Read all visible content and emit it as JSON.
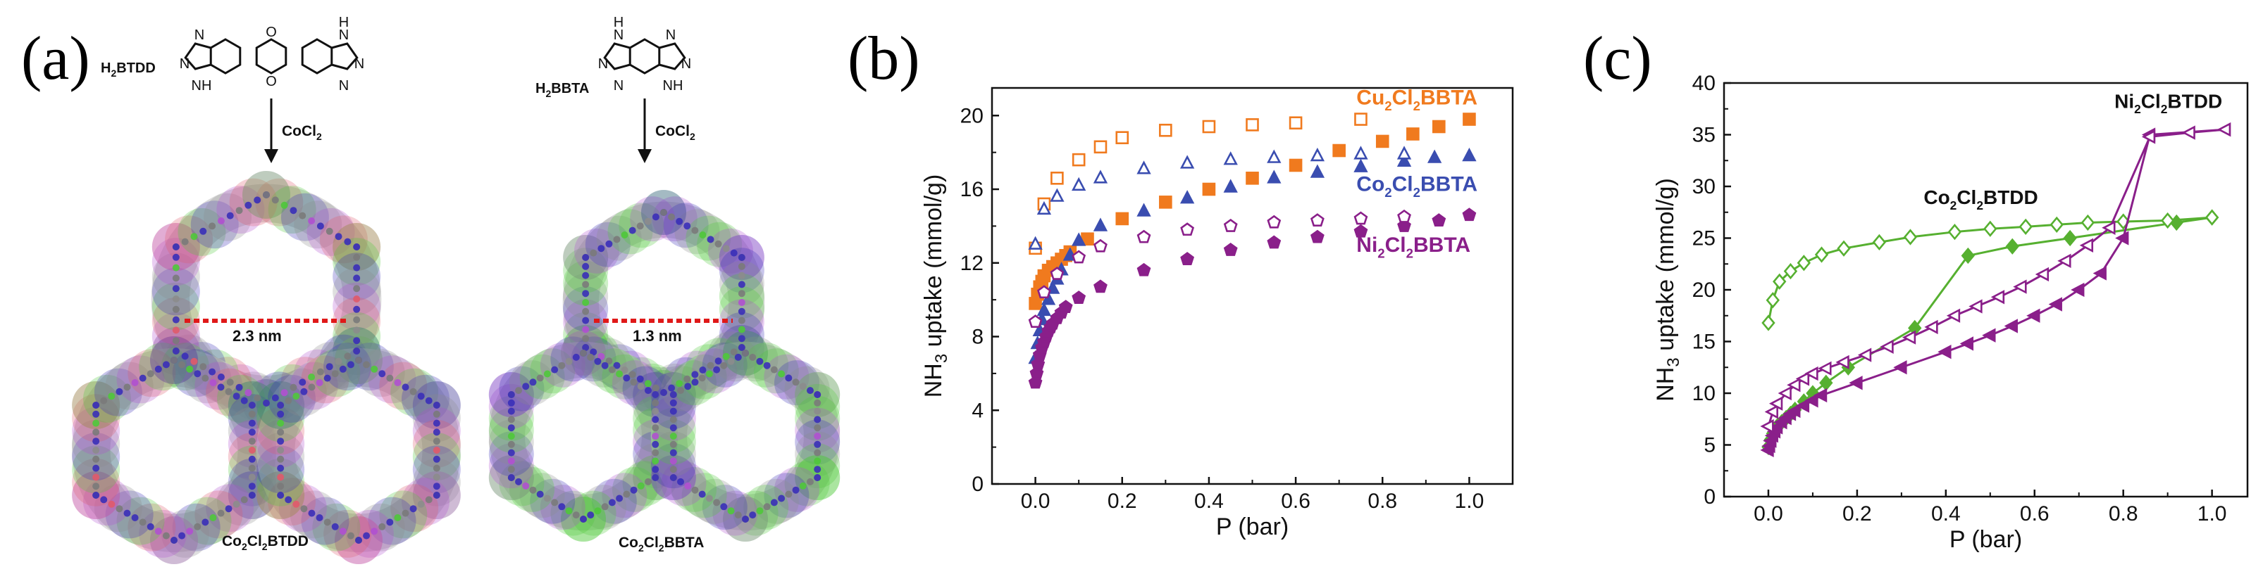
{
  "panel_letters": {
    "a": "(a)",
    "b": "(b)",
    "c": "(c)"
  },
  "panel_a": {
    "linker_left": {
      "label": "H",
      "sub": "2",
      "rest": "BTDD"
    },
    "linker_right": {
      "label": "H",
      "sub": "2",
      "rest": "BBTA"
    },
    "reagent_left": {
      "label": "CoCl",
      "sub": "2"
    },
    "reagent_right": {
      "label": "CoCl",
      "sub": "2"
    },
    "pore_left": "2.3 nm",
    "pore_right": "1.3 nm",
    "mof_left": {
      "p1": "Co",
      "s1": "2",
      "p2": "Cl",
      "s2": "2",
      "p3": "BTDD"
    },
    "mof_right": {
      "p1": "Co",
      "s1": "2",
      "p2": "Cl",
      "s2": "2",
      "p3": "BBTA"
    },
    "atom_colors": {
      "nitrogen": "#3a2fb8",
      "oxygen": "#e05a6a",
      "chlorine": "#4fc83a",
      "cobalt": "#b050d0",
      "carbon": "#8c8c8c"
    }
  },
  "chart_data": [
    {
      "id": "b",
      "type": "scatter",
      "xlabel": "P (bar)",
      "ylabel": {
        "pre": "NH",
        "sub": "3",
        "post": " uptake (mmol/g)"
      },
      "xlim": [
        -0.1,
        1.1
      ],
      "ylim": [
        0,
        21.5
      ],
      "xticks": [
        "0.0",
        "0.2",
        "0.4",
        "0.6",
        "0.8",
        "1.0"
      ],
      "yticks": [
        "0",
        "4",
        "8",
        "12",
        "16",
        "20"
      ],
      "series": [
        {
          "name": "Cu2Cl2BBTA adsorption",
          "color": "#f07a1e",
          "marker": "square",
          "filled": true,
          "x": [
            0.0,
            0.005,
            0.01,
            0.015,
            0.02,
            0.03,
            0.04,
            0.05,
            0.06,
            0.07,
            0.08,
            0.12,
            0.2,
            0.3,
            0.4,
            0.5,
            0.6,
            0.7,
            0.8,
            0.87,
            0.93,
            1.0
          ],
          "y": [
            9.8,
            10.3,
            10.7,
            11.0,
            11.3,
            11.6,
            11.8,
            12.0,
            12.2,
            12.4,
            12.6,
            13.3,
            14.4,
            15.3,
            16.0,
            16.6,
            17.3,
            18.1,
            18.6,
            19.0,
            19.4,
            19.8
          ]
        },
        {
          "name": "Cu2Cl2BBTA desorption",
          "color": "#f07a1e",
          "marker": "square",
          "filled": false,
          "x": [
            0.0,
            0.02,
            0.05,
            0.1,
            0.15,
            0.2,
            0.3,
            0.4,
            0.5,
            0.6,
            0.75
          ],
          "y": [
            12.8,
            15.2,
            16.6,
            17.6,
            18.3,
            18.8,
            19.2,
            19.4,
            19.5,
            19.6,
            19.8
          ]
        },
        {
          "name": "Co2Cl2BBTA adsorption",
          "color": "#3a4db0",
          "marker": "triangle",
          "filled": true,
          "x": [
            0.0,
            0.005,
            0.01,
            0.015,
            0.02,
            0.03,
            0.04,
            0.05,
            0.06,
            0.08,
            0.1,
            0.15,
            0.25,
            0.35,
            0.45,
            0.55,
            0.65,
            0.75,
            0.85,
            0.92,
            1.0
          ],
          "y": [
            6.8,
            7.6,
            8.3,
            8.9,
            9.4,
            10.0,
            10.6,
            11.1,
            11.6,
            12.4,
            13.2,
            14.0,
            14.8,
            15.5,
            16.1,
            16.6,
            16.9,
            17.2,
            17.5,
            17.7,
            17.8
          ]
        },
        {
          "name": "Co2Cl2BBTA desorption",
          "color": "#3a4db0",
          "marker": "triangle",
          "filled": false,
          "x": [
            0.0,
            0.02,
            0.05,
            0.1,
            0.15,
            0.25,
            0.35,
            0.45,
            0.55,
            0.65,
            0.75,
            0.85
          ],
          "y": [
            13.0,
            14.9,
            15.6,
            16.2,
            16.6,
            17.1,
            17.4,
            17.6,
            17.7,
            17.8,
            17.9,
            17.9
          ]
        },
        {
          "name": "Ni2Cl2BBTA adsorption",
          "color": "#8a1f8a",
          "marker": "pentagon",
          "filled": true,
          "x": [
            0.0,
            0.003,
            0.006,
            0.01,
            0.015,
            0.02,
            0.025,
            0.03,
            0.035,
            0.04,
            0.05,
            0.06,
            0.07,
            0.1,
            0.15,
            0.25,
            0.35,
            0.45,
            0.55,
            0.65,
            0.75,
            0.85,
            0.93,
            1.0
          ],
          "y": [
            5.5,
            6.0,
            6.5,
            7.0,
            7.4,
            7.7,
            8.0,
            8.3,
            8.5,
            8.7,
            9.0,
            9.3,
            9.6,
            10.1,
            10.7,
            11.6,
            12.2,
            12.7,
            13.1,
            13.4,
            13.7,
            14.0,
            14.3,
            14.6
          ]
        },
        {
          "name": "Ni2Cl2BBTA desorption",
          "color": "#8a1f8a",
          "marker": "pentagon",
          "filled": false,
          "x": [
            0.0,
            0.02,
            0.05,
            0.1,
            0.15,
            0.25,
            0.35,
            0.45,
            0.55,
            0.65,
            0.75,
            0.85
          ],
          "y": [
            8.8,
            10.4,
            11.4,
            12.3,
            12.9,
            13.4,
            13.8,
            14.0,
            14.2,
            14.3,
            14.4,
            14.5
          ]
        }
      ],
      "labels": [
        {
          "text": {
            "p1": "Cu",
            "s1": "2",
            "p2": "Cl",
            "s2": "2",
            "p3": "BBTA"
          },
          "color": "#f07a1e",
          "at": [
            0.74,
            20.6
          ]
        },
        {
          "text": {
            "p1": "Co",
            "s1": "2",
            "p2": "Cl",
            "s2": "2",
            "p3": "BBTA"
          },
          "color": "#3a4db0",
          "at": [
            0.74,
            15.9
          ]
        },
        {
          "text": {
            "p1": "Ni",
            "s1": "2",
            "p2": "Cl",
            "s2": "2",
            "p3": "BBTA"
          },
          "color": "#8a1f8a",
          "at": [
            0.74,
            12.6
          ]
        }
      ]
    },
    {
      "id": "c",
      "type": "line",
      "xlabel": "P (bar)",
      "ylabel": {
        "pre": "NH",
        "sub": "3",
        "post": " uptake (mmol/g)"
      },
      "xlim": [
        -0.1,
        1.08
      ],
      "ylim": [
        0,
        40
      ],
      "xticks": [
        "0.0",
        "0.2",
        "0.4",
        "0.6",
        "0.8",
        "1.0"
      ],
      "yticks": [
        "0",
        "5",
        "10",
        "15",
        "20",
        "25",
        "30",
        "35",
        "40"
      ],
      "series": [
        {
          "name": "Co2Cl2BTDD adsorption",
          "color": "#56b030",
          "marker": "diamond",
          "filled": true,
          "x": [
            0.0,
            0.005,
            0.01,
            0.02,
            0.03,
            0.04,
            0.05,
            0.06,
            0.08,
            0.1,
            0.13,
            0.18,
            0.33,
            0.45,
            0.55,
            0.68,
            0.92,
            1.0
          ],
          "y": [
            4.8,
            5.5,
            6.1,
            6.8,
            7.2,
            7.6,
            8.0,
            8.4,
            9.2,
            10.0,
            11.0,
            12.5,
            16.3,
            23.3,
            24.2,
            25.0,
            26.5,
            27.0
          ]
        },
        {
          "name": "Co2Cl2BTDD desorption",
          "color": "#56b030",
          "marker": "diamond",
          "filled": false,
          "x": [
            0.0,
            0.01,
            0.025,
            0.05,
            0.08,
            0.12,
            0.17,
            0.25,
            0.32,
            0.42,
            0.5,
            0.58,
            0.65,
            0.72,
            0.8,
            0.9,
            1.0
          ],
          "y": [
            16.8,
            19.0,
            20.8,
            21.8,
            22.6,
            23.4,
            24.0,
            24.6,
            25.1,
            25.6,
            25.9,
            26.1,
            26.3,
            26.5,
            26.6,
            26.7,
            27.0
          ]
        },
        {
          "name": "Ni2Cl2BTDD adsorption",
          "color": "#8a1f8a",
          "marker": "tri-left",
          "filled": true,
          "x": [
            0.0,
            0.003,
            0.006,
            0.01,
            0.015,
            0.02,
            0.03,
            0.04,
            0.05,
            0.06,
            0.08,
            0.1,
            0.12,
            0.2,
            0.3,
            0.4,
            0.45,
            0.5,
            0.55,
            0.6,
            0.65,
            0.7,
            0.75,
            0.8,
            0.86,
            1.03
          ],
          "y": [
            4.5,
            4.9,
            5.4,
            5.9,
            6.3,
            6.7,
            7.2,
            7.6,
            8.0,
            8.3,
            8.8,
            9.3,
            9.8,
            11.0,
            12.5,
            14.0,
            14.8,
            15.6,
            16.5,
            17.5,
            18.6,
            20.0,
            21.6,
            25.0,
            35.0,
            35.5
          ]
        },
        {
          "name": "Ni2Cl2BTDD desorption",
          "color": "#8a1f8a",
          "marker": "tri-left",
          "filled": false,
          "x": [
            0.0,
            0.01,
            0.02,
            0.04,
            0.06,
            0.08,
            0.1,
            0.13,
            0.17,
            0.22,
            0.27,
            0.32,
            0.37,
            0.42,
            0.47,
            0.52,
            0.57,
            0.62,
            0.67,
            0.72,
            0.77,
            0.86,
            0.95,
            1.03
          ],
          "y": [
            6.8,
            8.2,
            9.0,
            10.0,
            10.8,
            11.4,
            11.9,
            12.4,
            13.0,
            13.7,
            14.5,
            15.4,
            16.4,
            17.5,
            18.4,
            19.3,
            20.3,
            21.5,
            22.8,
            24.3,
            26.0,
            34.8,
            35.2,
            35.5
          ]
        }
      ],
      "labels": [
        {
          "text": {
            "p1": "Co",
            "s1": "2",
            "p2": "Cl",
            "s2": "2",
            "p3": "BTDD"
          },
          "color": "#111111",
          "at": [
            0.35,
            28.3
          ]
        },
        {
          "text": {
            "p1": "Ni",
            "s1": "2",
            "p2": "Cl",
            "s2": "2",
            "p3": "BTDD"
          },
          "color": "#111111",
          "at": [
            0.78,
            37.6
          ]
        }
      ]
    }
  ]
}
